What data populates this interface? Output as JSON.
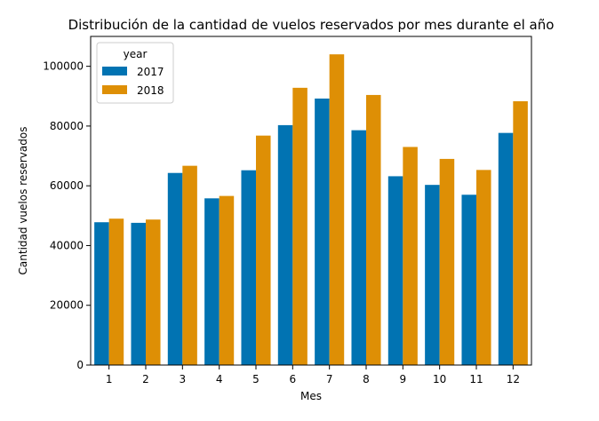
{
  "chart_data": {
    "type": "bar",
    "title": "Distribución de la cantidad de vuelos reservados por mes durante el año",
    "xlabel": "Mes",
    "ylabel": "Cantidad vuelos reservados",
    "categories": [
      "1",
      "2",
      "3",
      "4",
      "5",
      "6",
      "7",
      "8",
      "9",
      "10",
      "11",
      "12"
    ],
    "series": [
      {
        "name": "2017",
        "color": "#0173b2",
        "values": [
          47800,
          47600,
          64300,
          55800,
          65200,
          80300,
          89200,
          78600,
          63200,
          60300,
          57000,
          77700
        ]
      },
      {
        "name": "2018",
        "color": "#de8f05",
        "values": [
          49000,
          48700,
          66700,
          56600,
          76800,
          92800,
          104000,
          90400,
          73000,
          69000,
          65300,
          88300
        ]
      }
    ],
    "ylim": [
      0,
      110000
    ],
    "yticks": [
      0,
      20000,
      40000,
      60000,
      80000,
      100000
    ],
    "legend": {
      "title": "year",
      "position": "top-left"
    },
    "grid": false
  }
}
